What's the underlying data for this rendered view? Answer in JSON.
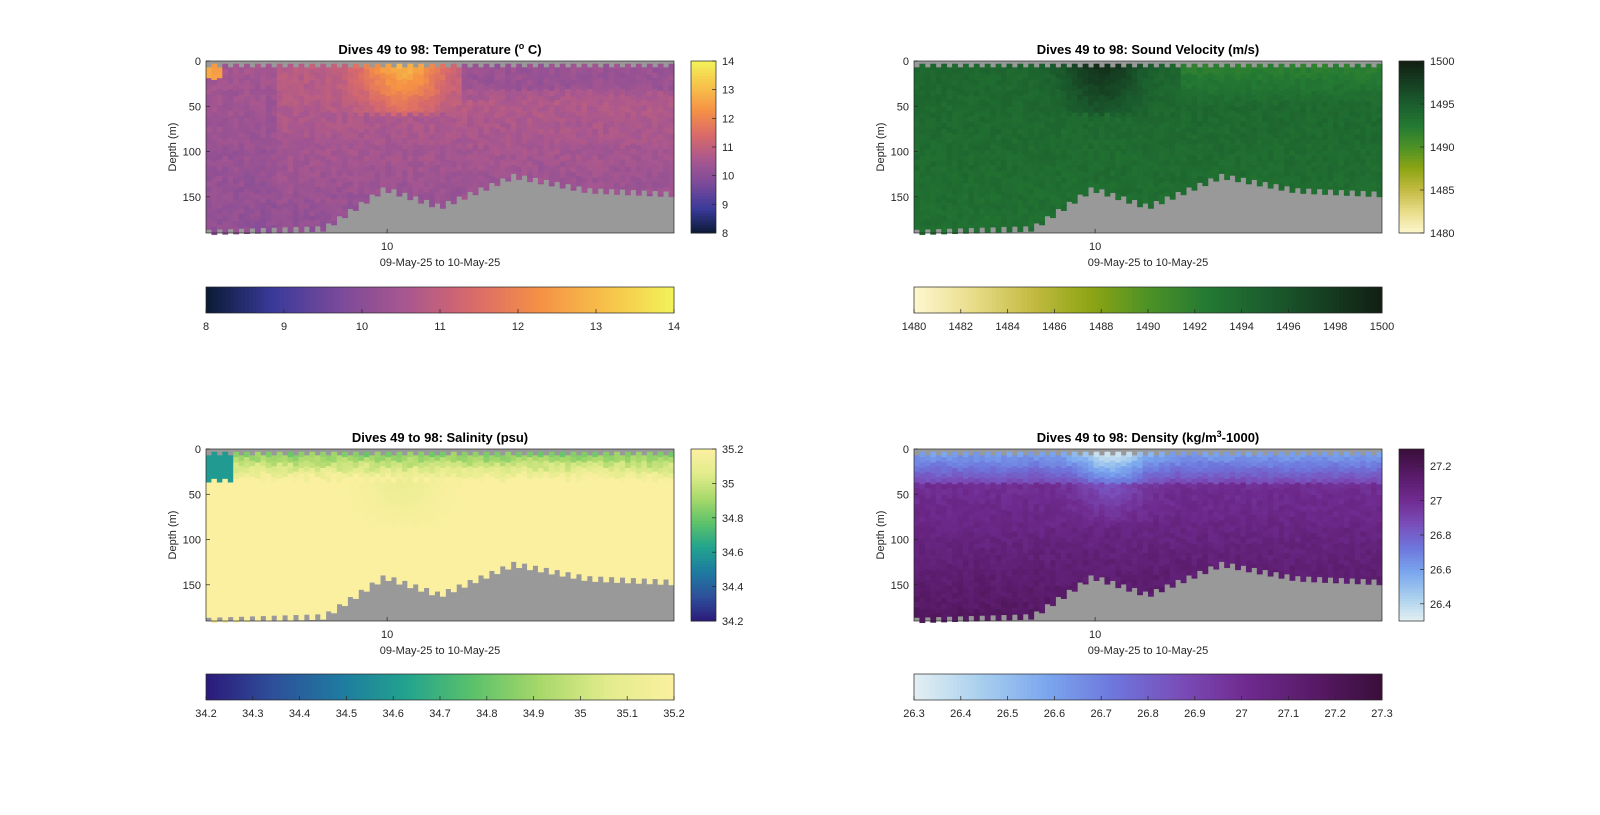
{
  "figure": {
    "background": "#ffffff",
    "seafloor_color": "#999999",
    "xlabel": "09-May-25 to 10-May-25",
    "ylabel": "Depth (m)",
    "x_tick_labels": [
      "10"
    ]
  },
  "chart_data": [
    {
      "id": "temperature",
      "type": "heatmap",
      "title_pre": "Dives 49 to 98: Temperature (",
      "title_sup": "o",
      "title_post": " C)",
      "xlabel": "09-May-25 to 10-May-25",
      "ylabel": "Depth (m)",
      "ylim": [
        0,
        190
      ],
      "yticks": [
        "0",
        "50",
        "100",
        "150"
      ],
      "xticks": [
        "10"
      ],
      "clim": [
        8,
        14
      ],
      "colorbar_ticks": [
        "8",
        "9",
        "10",
        "11",
        "12",
        "13",
        "14"
      ],
      "h_colorbar_ticks": [
        "8",
        "9",
        "10",
        "11",
        "12",
        "13",
        "14"
      ],
      "colormap": [
        "#0b1a34",
        "#3a3a9a",
        "#7a4a9a",
        "#a9578f",
        "#d96a6a",
        "#f59145",
        "#f7c24a",
        "#f2f25a"
      ],
      "sample_values": {
        "surface_warm_patch": 13,
        "upper_layer": 11.2,
        "interior": 10.5,
        "deep": 10.3
      }
    },
    {
      "id": "sound_velocity",
      "type": "heatmap",
      "title_pre": "Dives 49 to 98: Sound Velocity (m/s)",
      "title_sup": "",
      "title_post": "",
      "xlabel": "09-May-25 to 10-May-25",
      "ylabel": "Depth (m)",
      "ylim": [
        0,
        190
      ],
      "yticks": [
        "0",
        "50",
        "100",
        "150"
      ],
      "xticks": [
        "10"
      ],
      "clim": [
        1480,
        1500
      ],
      "colorbar_ticks": [
        "1480",
        "1485",
        "1490",
        "1495",
        "1500"
      ],
      "h_colorbar_ticks": [
        "1480",
        "1482",
        "1484",
        "1486",
        "1488",
        "1490",
        "1492",
        "1494",
        "1496",
        "1498",
        "1500"
      ],
      "colormap": [
        "#fdf7cf",
        "#e9dd8a",
        "#c4bb43",
        "#8ea514",
        "#4d9226",
        "#247a33",
        "#1b5e2e",
        "#163f22",
        "#121f12"
      ],
      "sample_values": {
        "surface_patch": 1498,
        "upper_layer": 1494.5,
        "interior": 1494,
        "deep": 1493.5
      }
    },
    {
      "id": "salinity",
      "type": "heatmap",
      "title_pre": "Dives 49 to 98: Salinity (psu)",
      "title_sup": "",
      "title_post": "",
      "xlabel": "09-May-25 to 10-May-25",
      "ylabel": "Depth (m)",
      "ylim": [
        0,
        190
      ],
      "yticks": [
        "0",
        "50",
        "100",
        "150"
      ],
      "xticks": [
        "10"
      ],
      "clim": [
        34.2,
        35.2
      ],
      "colorbar_ticks": [
        "34.2",
        "34.4",
        "34.6",
        "34.8",
        "35",
        "35.2"
      ],
      "h_colorbar_ticks": [
        "34.2",
        "34.3",
        "34.4",
        "34.5",
        "34.6",
        "34.7",
        "34.8",
        "34.9",
        "35",
        "35.1",
        "35.2"
      ],
      "colormap": [
        "#2b1a7a",
        "#2e4f9a",
        "#1f7aa0",
        "#22a38e",
        "#5cc26a",
        "#a8d86a",
        "#e2ec8c",
        "#fbf0a0"
      ],
      "sample_values": {
        "surface_fresh": 34.75,
        "upper_layer": 35.0,
        "interior": 35.2,
        "deep": 35.2
      }
    },
    {
      "id": "density",
      "type": "heatmap",
      "title_pre": "Dives 49 to 98: Density (kg/m",
      "title_sup": "3",
      "title_post": "-1000)",
      "xlabel": "09-May-25 to 10-May-25",
      "ylabel": "Depth (m)",
      "ylim": [
        0,
        190
      ],
      "yticks": [
        "0",
        "50",
        "100",
        "150"
      ],
      "xticks": [
        "10"
      ],
      "clim": [
        26.3,
        27.3
      ],
      "colorbar_ticks": [
        "26.4",
        "26.6",
        "26.8",
        "27",
        "27.2"
      ],
      "h_colorbar_ticks": [
        "26.3",
        "26.4",
        "26.5",
        "26.6",
        "26.7",
        "26.8",
        "26.9",
        "27",
        "27.1",
        "27.2",
        "27.3"
      ],
      "colormap": [
        "#e4f0f2",
        "#a9cfee",
        "#7aa6ee",
        "#6e76dc",
        "#7a4cb8",
        "#6f2a8e",
        "#571a66",
        "#3a0e3a"
      ],
      "sample_values": {
        "surface_light": 26.6,
        "upper_layer": 26.9,
        "interior": 27.05,
        "deep": 27.15
      }
    }
  ]
}
